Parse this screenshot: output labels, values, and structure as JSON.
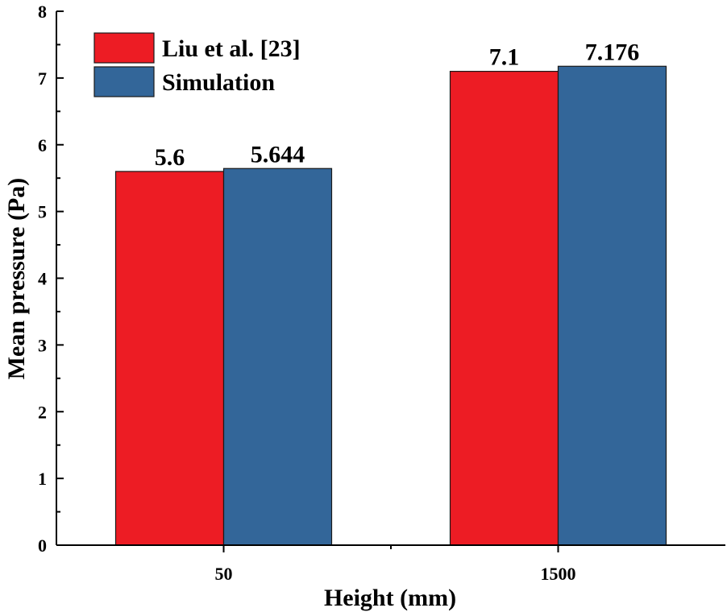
{
  "chart_data": {
    "type": "bar",
    "title": "",
    "xlabel": "Height (mm)",
    "ylabel": "Mean pressure (Pa)",
    "categories": [
      "50",
      "1500"
    ],
    "series": [
      {
        "name": "Liu et al. [23]",
        "color": "#ed1c24",
        "values": [
          5.6,
          7.1
        ],
        "labels": [
          "5.6",
          "7.1"
        ]
      },
      {
        "name": "Simulation",
        "color": "#336699",
        "values": [
          5.644,
          7.176
        ],
        "labels": [
          "5.644",
          "7.176"
        ]
      }
    ],
    "ylim": [
      0,
      8
    ],
    "yticks": [
      "0",
      "1",
      "2",
      "3",
      "4",
      "5",
      "6",
      "7",
      "8"
    ],
    "legend_position": "top-left",
    "grid": false
  }
}
